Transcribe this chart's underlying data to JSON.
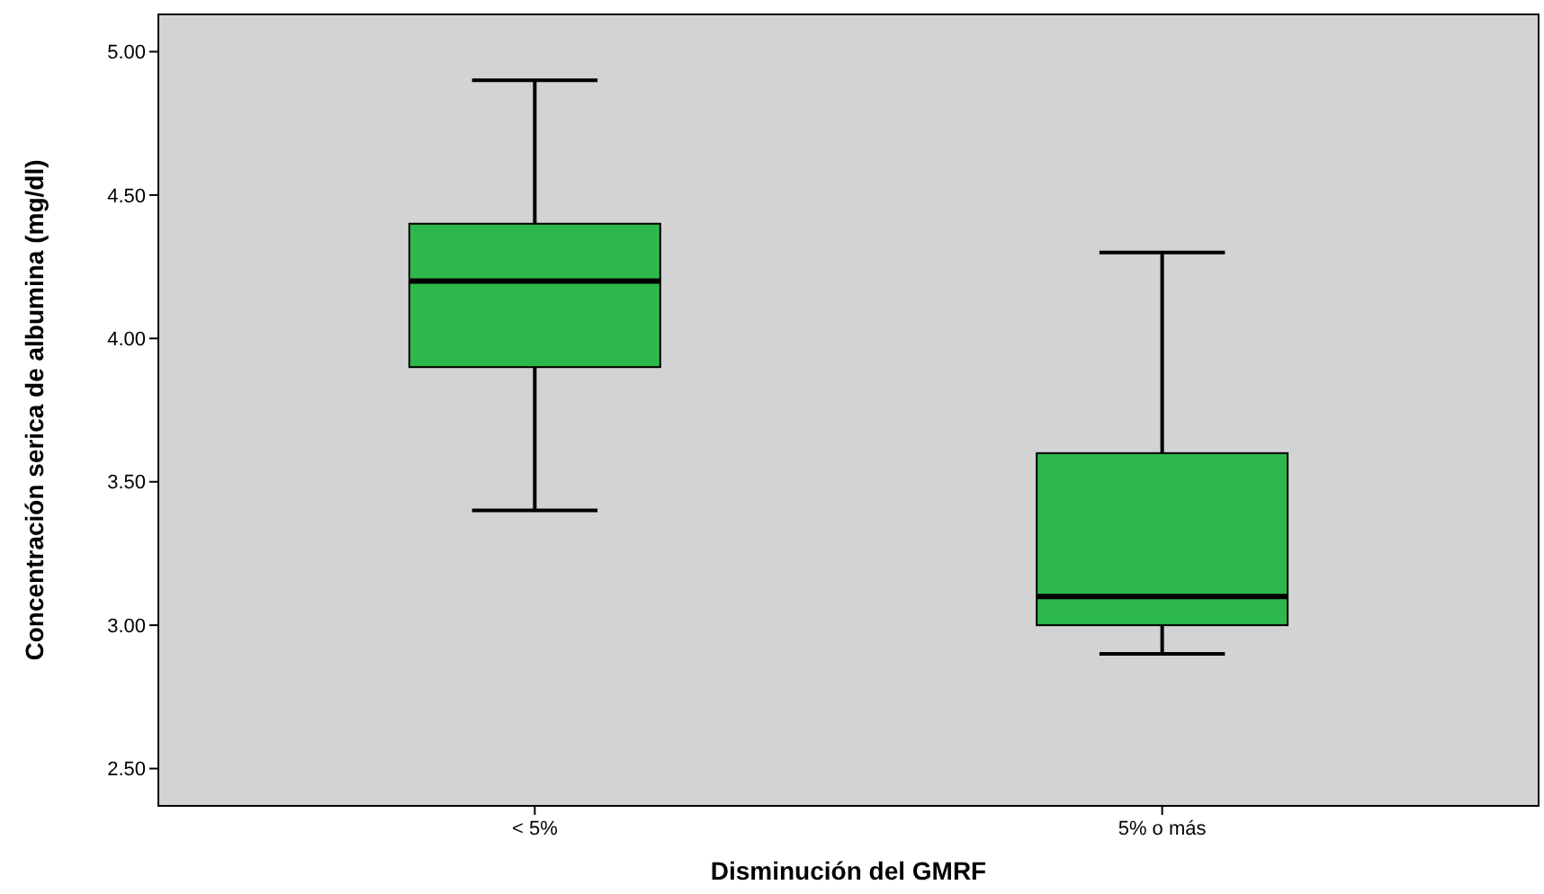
{
  "chart_data": {
    "type": "box",
    "xlabel": "Disminución del GMRF",
    "ylabel": "Concentración serica de albumina (mg/dl)",
    "categories": [
      "< 5%",
      "5% o más"
    ],
    "series": [
      {
        "color": "#2db84b",
        "boxes": [
          {
            "low": 3.4,
            "q1": 3.9,
            "median": 4.2,
            "q3": 4.4,
            "high": 4.9
          },
          {
            "low": 2.9,
            "q1": 3.0,
            "median": 3.1,
            "q3": 3.6,
            "high": 4.3
          }
        ]
      }
    ],
    "ylim": [
      2.37,
      5.13
    ],
    "yticks": [
      {
        "value": 2.5,
        "label": "2.50"
      },
      {
        "value": 3,
        "label": "3.00"
      },
      {
        "value": 3.5,
        "label": "3.50"
      },
      {
        "value": 4,
        "label": "4.00"
      },
      {
        "value": 4.5,
        "label": "4.50"
      },
      {
        "value": 5,
        "label": "5.00"
      }
    ],
    "grid": false
  }
}
